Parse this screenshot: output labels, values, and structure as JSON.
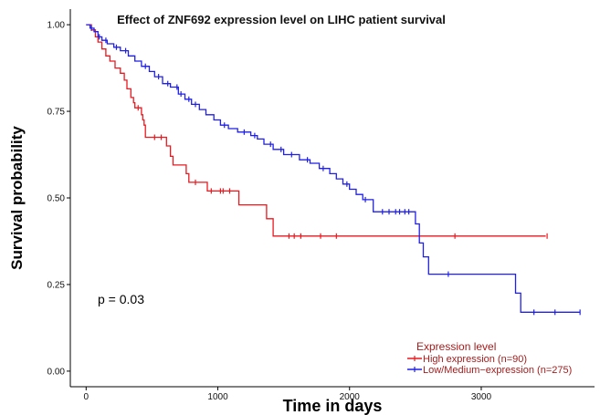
{
  "chart_data": {
    "type": "line",
    "title": "Effect of ZNF692 expression level on LIHC patient survival",
    "xlabel": "Time in days",
    "ylabel": "Survival probability",
    "xlim": [
      -120,
      3860
    ],
    "ylim": [
      -0.045,
      1.045
    ],
    "x_ticks": [
      0,
      1000,
      2000,
      3000
    ],
    "y_ticks": [
      0,
      0.25,
      0.5,
      0.75,
      1.0
    ],
    "y_tick_labels": [
      "0.00",
      "0.25",
      "0.50",
      "0.75",
      "1.00"
    ],
    "grid": false,
    "legend_position": "bottom-right",
    "annotation": "p = 0.03",
    "legend": {
      "title": "Expression level"
    },
    "series": [
      {
        "name": "High expression (n=90)",
        "color": "#e8191f",
        "steps": [
          [
            0,
            1.0
          ],
          [
            40,
            0.985
          ],
          [
            70,
            0.965
          ],
          [
            90,
            0.95
          ],
          [
            120,
            0.93
          ],
          [
            150,
            0.91
          ],
          [
            180,
            0.895
          ],
          [
            220,
            0.875
          ],
          [
            260,
            0.86
          ],
          [
            290,
            0.84
          ],
          [
            310,
            0.815
          ],
          [
            340,
            0.79
          ],
          [
            360,
            0.775
          ],
          [
            370,
            0.76
          ],
          [
            420,
            0.74
          ],
          [
            430,
            0.725
          ],
          [
            440,
            0.71
          ],
          [
            450,
            0.675
          ],
          [
            610,
            0.65
          ],
          [
            640,
            0.62
          ],
          [
            660,
            0.595
          ],
          [
            760,
            0.57
          ],
          [
            780,
            0.545
          ],
          [
            920,
            0.52
          ],
          [
            1160,
            0.48
          ],
          [
            1370,
            0.44
          ],
          [
            1420,
            0.39
          ],
          [
            3490,
            0.39
          ]
        ],
        "censor_times": [
          395,
          520,
          570,
          830,
          950,
          1020,
          1040,
          1090,
          1540,
          1580,
          1630,
          1780,
          1900,
          2800,
          3500
        ]
      },
      {
        "name": "Low/Medium−expression (n=275)",
        "color": "#1f1fe8",
        "steps": [
          [
            0,
            1.0
          ],
          [
            30,
            0.99
          ],
          [
            60,
            0.98
          ],
          [
            90,
            0.965
          ],
          [
            120,
            0.955
          ],
          [
            160,
            0.945
          ],
          [
            210,
            0.935
          ],
          [
            260,
            0.925
          ],
          [
            320,
            0.91
          ],
          [
            370,
            0.895
          ],
          [
            420,
            0.88
          ],
          [
            480,
            0.865
          ],
          [
            520,
            0.85
          ],
          [
            580,
            0.83
          ],
          [
            640,
            0.82
          ],
          [
            700,
            0.8
          ],
          [
            750,
            0.785
          ],
          [
            800,
            0.77
          ],
          [
            860,
            0.755
          ],
          [
            910,
            0.74
          ],
          [
            970,
            0.725
          ],
          [
            1020,
            0.71
          ],
          [
            1080,
            0.7
          ],
          [
            1150,
            0.69
          ],
          [
            1250,
            0.68
          ],
          [
            1300,
            0.67
          ],
          [
            1350,
            0.655
          ],
          [
            1420,
            0.64
          ],
          [
            1500,
            0.625
          ],
          [
            1620,
            0.61
          ],
          [
            1700,
            0.6
          ],
          [
            1770,
            0.585
          ],
          [
            1850,
            0.57
          ],
          [
            1900,
            0.555
          ],
          [
            1950,
            0.54
          ],
          [
            2000,
            0.525
          ],
          [
            2050,
            0.51
          ],
          [
            2100,
            0.495
          ],
          [
            2180,
            0.46
          ],
          [
            2500,
            0.425
          ],
          [
            2530,
            0.37
          ],
          [
            2560,
            0.33
          ],
          [
            2600,
            0.28
          ],
          [
            3260,
            0.225
          ],
          [
            3300,
            0.17
          ],
          [
            3750,
            0.17
          ]
        ],
        "censor_times": [
          40,
          100,
          150,
          230,
          300,
          450,
          550,
          620,
          690,
          720,
          780,
          830,
          1050,
          1200,
          1280,
          1400,
          1480,
          1560,
          1680,
          1800,
          1980,
          2120,
          2250,
          2300,
          2350,
          2380,
          2420,
          2450,
          2750,
          3400,
          3560,
          3750
        ]
      }
    ]
  }
}
